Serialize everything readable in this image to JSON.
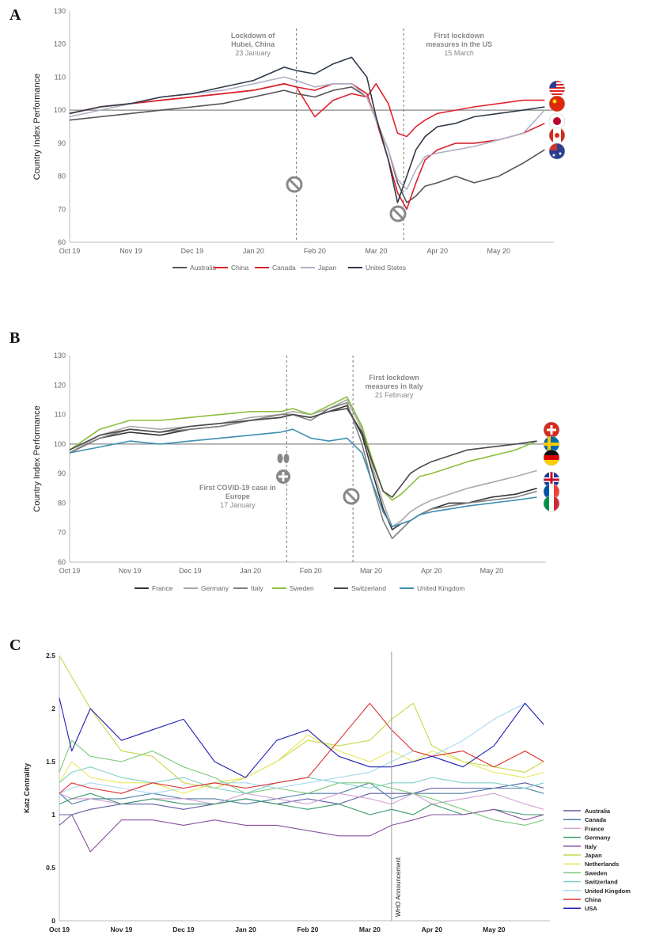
{
  "panels": [
    {
      "label": "A"
    },
    {
      "label": "B"
    },
    {
      "label": "C"
    }
  ],
  "chart_data": [
    {
      "type": "line",
      "ylabel": "Country Index Performance",
      "ylim": [
        60,
        130
      ],
      "yticks": [
        60,
        70,
        80,
        90,
        100,
        110,
        120,
        130
      ],
      "x_ticks": [
        "Oct 19",
        "Nov 19",
        "Dec 19",
        "Jan 20",
        "Feb 20",
        "Mar 20",
        "Apr 20",
        "May 20"
      ],
      "reference_line": 100,
      "annotations": [
        {
          "text": [
            "Lockdown of",
            "Hubei, China",
            "23 January"
          ],
          "x": 3.7
        },
        {
          "text": [
            "First lockdown",
            "measures in the US",
            "15 March"
          ],
          "x": 5.45
        }
      ],
      "legend_position": "bottom",
      "icons": [
        "usa-flag-icon",
        "china-flag-icon",
        "japan-flag-icon",
        "canada-flag-icon",
        "australia-flag-icon",
        "no-entry-icon"
      ],
      "x": [
        0,
        0.5,
        1,
        1.5,
        2,
        2.5,
        3,
        3.5,
        3.7,
        4,
        4.3,
        4.6,
        4.85,
        5,
        5.2,
        5.35,
        5.5,
        5.65,
        5.8,
        6,
        6.3,
        6.6,
        7,
        7.4,
        7.75
      ],
      "series": [
        {
          "name": "Australia",
          "color": "#555555",
          "values": [
            97,
            98,
            99,
            100,
            101,
            102,
            104,
            106,
            105,
            104,
            106,
            107,
            104,
            97,
            88,
            78,
            72,
            74,
            77,
            78,
            80,
            78,
            80,
            84,
            88
          ]
        },
        {
          "name": "China",
          "color": "#e0242c",
          "values": [
            99,
            101,
            102,
            103,
            104,
            105,
            106,
            108,
            107,
            98,
            103,
            105,
            104,
            108,
            102,
            93,
            92,
            95,
            97,
            99,
            100,
            101,
            102,
            103,
            103
          ]
        },
        {
          "name": "Canada",
          "color": "#d8202a",
          "values": [
            99,
            101,
            102,
            103,
            104,
            105,
            106,
            108,
            107,
            106,
            108,
            108,
            105,
            97,
            85,
            75,
            70,
            78,
            85,
            88,
            90,
            90,
            91,
            93,
            96
          ]
        },
        {
          "name": "Japan",
          "color": "#b0b0c8",
          "values": [
            98,
            100,
            102,
            104,
            105,
            106,
            108,
            110,
            109,
            107,
            108,
            108,
            104,
            97,
            88,
            79,
            76,
            82,
            86,
            87,
            88,
            89,
            91,
            93,
            100
          ]
        },
        {
          "name": "United States",
          "color": "#2f3a4a",
          "values": [
            99,
            101,
            102,
            104,
            105,
            107,
            109,
            113,
            112,
            111,
            114,
            116,
            110,
            98,
            85,
            72,
            80,
            88,
            92,
            95,
            96,
            98,
            99,
            100,
            101
          ]
        }
      ]
    },
    {
      "type": "line",
      "ylabel": "Country Index Performance",
      "ylim": [
        60,
        130
      ],
      "yticks": [
        60,
        70,
        80,
        90,
        100,
        110,
        120,
        130
      ],
      "x_ticks": [
        "Oct 19",
        "Nov 19",
        "Dec 19",
        "Jan 20",
        "Feb 20",
        "Mar 20",
        "Apr 20",
        "May 20"
      ],
      "reference_line": 100,
      "annotations": [
        {
          "text": [
            "First lockdown",
            "measures in Italy",
            "21 February"
          ],
          "x": 4.7
        },
        {
          "text": [
            "First COVID-19 case in",
            "Europe",
            "17 January"
          ],
          "x": 3.6
        }
      ],
      "legend_position": "bottom",
      "icons": [
        "switzerland-flag-icon",
        "sweden-flag-icon",
        "germany-flag-icon",
        "uk-flag-icon",
        "france-flag-icon",
        "italy-flag-icon",
        "lungs-icon",
        "medical-cross-icon",
        "no-entry-icon"
      ],
      "x": [
        0,
        0.5,
        1,
        1.5,
        2,
        2.5,
        3,
        3.5,
        3.7,
        4,
        4.3,
        4.6,
        4.85,
        5,
        5.2,
        5.35,
        5.5,
        5.65,
        5.8,
        6,
        6.3,
        6.6,
        7,
        7.4,
        7.75
      ],
      "series": [
        {
          "name": "France",
          "color": "#333333",
          "values": [
            97,
            102,
            104,
            103,
            105,
            106,
            108,
            109,
            110,
            109,
            111,
            113,
            103,
            92,
            78,
            71,
            73,
            74,
            76,
            78,
            80,
            80,
            82,
            83,
            85
          ]
        },
        {
          "name": "Germany",
          "color": "#a9a9a9",
          "values": [
            97,
            103,
            106,
            105,
            106,
            107,
            109,
            110,
            111,
            110,
            112,
            115,
            105,
            94,
            80,
            72,
            74,
            77,
            79,
            81,
            83,
            85,
            87,
            89,
            91
          ]
        },
        {
          "name": "Italy",
          "color": "#808080",
          "values": [
            97,
            102,
            105,
            104,
            105,
            106,
            108,
            110,
            110,
            108,
            112,
            114,
            100,
            88,
            74,
            68,
            71,
            74,
            76,
            78,
            79,
            80,
            81,
            82,
            84
          ]
        },
        {
          "name": "Sweden",
          "color": "#8bbf3f",
          "values": [
            98,
            105,
            108,
            108,
            109,
            110,
            111,
            111,
            112,
            110,
            113,
            116,
            106,
            96,
            84,
            81,
            83,
            86,
            89,
            90,
            92,
            94,
            96,
            98,
            101
          ]
        },
        {
          "name": "Switzerland",
          "color": "#4a4a4a",
          "values": [
            98,
            103,
            105,
            104,
            106,
            107,
            108,
            109,
            110,
            109,
            111,
            112,
            104,
            95,
            84,
            82,
            86,
            90,
            92,
            94,
            96,
            98,
            99,
            100,
            101
          ]
        },
        {
          "name": "United Kingdom",
          "color": "#3f8fb0",
          "values": [
            97,
            99,
            101,
            100,
            101,
            102,
            103,
            104,
            105,
            102,
            101,
            102,
            97,
            88,
            77,
            72,
            73,
            74,
            76,
            77,
            78,
            79,
            80,
            81,
            82
          ]
        }
      ]
    },
    {
      "type": "line",
      "ylabel": "Katz Centrality",
      "ylim": [
        0,
        2.5
      ],
      "yticks": [
        0,
        0.5,
        1,
        1.5,
        2,
        2.5
      ],
      "x_ticks": [
        "Oct 19",
        "Nov 19",
        "Dec 19",
        "Jan 20",
        "Feb 20",
        "Mar 20",
        "Apr 20",
        "May 20"
      ],
      "vline": {
        "x": 5.35,
        "label": "WHO Announcement"
      },
      "legend_position": "right",
      "x": [
        0,
        0.2,
        0.5,
        1,
        1.5,
        2,
        2.5,
        3,
        3.5,
        4,
        4.5,
        5,
        5.35,
        5.7,
        6,
        6.5,
        7,
        7.5,
        7.8
      ],
      "series": [
        {
          "name": "Australia",
          "color": "#5b5ba6",
          "values": [
            1.0,
            1.0,
            1.05,
            1.1,
            1.1,
            1.05,
            1.1,
            1.15,
            1.1,
            1.15,
            1.1,
            1.2,
            1.2,
            1.2,
            1.25,
            1.25,
            1.25,
            1.3,
            1.25
          ]
        },
        {
          "name": "Canada",
          "color": "#4f7fa6",
          "values": [
            1.2,
            1.1,
            1.15,
            1.15,
            1.2,
            1.15,
            1.15,
            1.1,
            1.15,
            1.2,
            1.2,
            1.3,
            1.15,
            1.2,
            1.2,
            1.2,
            1.25,
            1.25,
            1.2
          ]
        },
        {
          "name": "France",
          "color": "#d4a0d4",
          "values": [
            1.2,
            1.15,
            1.15,
            1.1,
            1.15,
            1.15,
            1.1,
            1.2,
            1.15,
            1.1,
            1.2,
            1.15,
            1.1,
            1.2,
            1.1,
            1.15,
            1.2,
            1.1,
            1.05
          ]
        },
        {
          "name": "Germany",
          "color": "#3a9a6a",
          "values": [
            1.1,
            1.15,
            1.2,
            1.1,
            1.15,
            1.1,
            1.1,
            1.15,
            1.1,
            1.05,
            1.1,
            1.0,
            1.05,
            1.0,
            1.1,
            1.0,
            1.05,
            1.0,
            1.0
          ]
        },
        {
          "name": "Italy",
          "color": "#8a4fa0",
          "values": [
            0.9,
            1.0,
            0.65,
            0.95,
            0.95,
            0.9,
            0.95,
            0.9,
            0.9,
            0.85,
            0.8,
            0.8,
            0.9,
            0.95,
            1.0,
            1.0,
            1.05,
            0.95,
            1.0
          ]
        },
        {
          "name": "Japan",
          "color": "#c8d84a",
          "values": [
            2.5,
            2.3,
            2.0,
            1.6,
            1.55,
            1.3,
            1.25,
            1.35,
            1.5,
            1.7,
            1.65,
            1.7,
            1.9,
            2.05,
            1.65,
            1.5,
            1.45,
            1.4,
            1.5
          ]
        },
        {
          "name": "Netherlands",
          "color": "#e8e85a",
          "values": [
            1.3,
            1.5,
            1.35,
            1.3,
            1.3,
            1.2,
            1.3,
            1.35,
            1.5,
            1.75,
            1.6,
            1.5,
            1.6,
            1.5,
            1.6,
            1.5,
            1.4,
            1.35,
            1.4
          ]
        },
        {
          "name": "Sweden",
          "color": "#7ac87a",
          "values": [
            1.4,
            1.7,
            1.55,
            1.5,
            1.6,
            1.45,
            1.35,
            1.2,
            1.25,
            1.2,
            1.3,
            1.3,
            1.25,
            1.2,
            1.15,
            1.05,
            0.95,
            0.9,
            0.95
          ]
        },
        {
          "name": "Switzerland",
          "color": "#80d0c8",
          "values": [
            1.3,
            1.4,
            1.45,
            1.35,
            1.3,
            1.35,
            1.25,
            1.2,
            1.3,
            1.35,
            1.3,
            1.25,
            1.3,
            1.3,
            1.35,
            1.3,
            1.3,
            1.25,
            1.3
          ]
        },
        {
          "name": "United Kingdom",
          "color": "#a8d8f0",
          "values": [
            1.2,
            1.25,
            1.3,
            1.25,
            1.2,
            1.25,
            1.3,
            1.3,
            1.25,
            1.3,
            1.35,
            1.4,
            1.5,
            1.6,
            1.55,
            1.7,
            1.9,
            2.05,
            1.85
          ]
        },
        {
          "name": "China",
          "color": "#e03030",
          "values": [
            1.2,
            1.3,
            1.25,
            1.2,
            1.3,
            1.25,
            1.3,
            1.25,
            1.3,
            1.35,
            1.7,
            2.05,
            1.8,
            1.6,
            1.55,
            1.6,
            1.45,
            1.6,
            1.5
          ]
        },
        {
          "name": "USA",
          "color": "#2020b0",
          "values": [
            2.1,
            1.6,
            2.0,
            1.7,
            1.8,
            1.9,
            1.5,
            1.35,
            1.7,
            1.8,
            1.55,
            1.45,
            1.45,
            1.5,
            1.55,
            1.45,
            1.65,
            2.05,
            1.85
          ]
        }
      ]
    }
  ]
}
